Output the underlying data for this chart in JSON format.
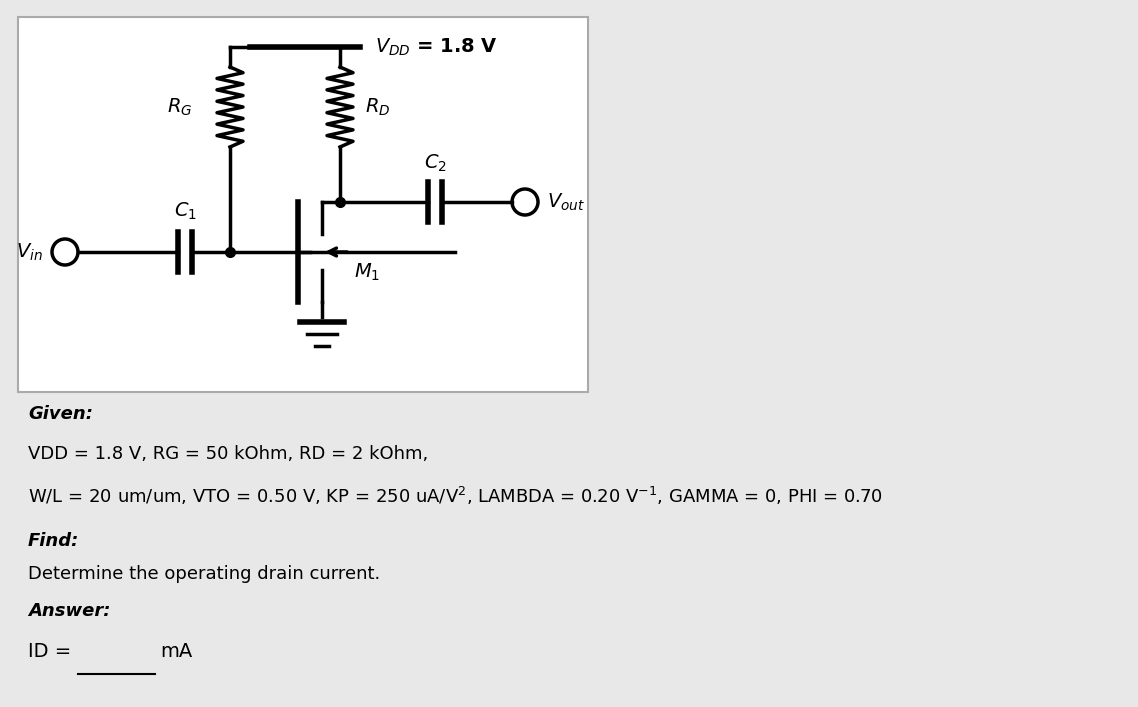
{
  "bg_color": "#e8e8e8",
  "circuit_box_bg": "#ffffff",
  "circuit_box_edge": "#cccccc",
  "line_color": "#000000",
  "vdd_text": "$V_{DD}$ = 1.8 V",
  "rg_text": "$R_G$",
  "rd_text": "$R_D$",
  "c1_text": "$C_1$",
  "c2_text": "$C_2$",
  "m1_text": "$M_1$",
  "vin_text": "$V_{in}$",
  "vout_text": "$V_{out}$",
  "given_label": "Given:",
  "given_line1": "VDD = 1.8 V, RG = 50 kOhm, RD = 2 kOhm,",
  "find_label": "Find:",
  "find_text": "Determine the operating drain current.",
  "answer_label": "Answer:",
  "id_text": "ID = ",
  "ma_text": "mA",
  "fontsize_circuit": 14,
  "fontsize_text": 13
}
